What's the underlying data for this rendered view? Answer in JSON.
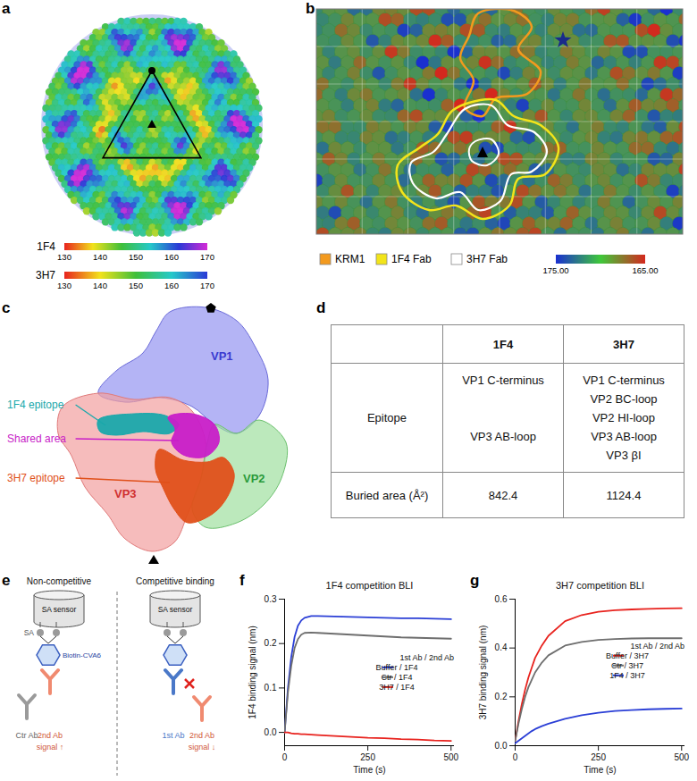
{
  "panel_a": {
    "letter": "a",
    "colorbars": [
      {
        "label": "1F4",
        "range": [
          130,
          170
        ],
        "ticks": [
          130,
          140,
          150,
          160,
          170
        ],
        "colors": [
          "#e8231e",
          "#f2e21c",
          "#3fbf3a",
          "#25c9c9",
          "#2a3ad6",
          "#d42ad6"
        ]
      },
      {
        "label": "3H7",
        "range": [
          130,
          170
        ],
        "ticks": [
          130,
          140,
          150,
          160,
          170
        ],
        "colors": [
          "#e8231e",
          "#f2e21c",
          "#3fbf3a",
          "#25c9c9",
          "#2a3ad6"
        ]
      }
    ]
  },
  "panel_b": {
    "letter": "b",
    "legend": [
      {
        "label": "KRM1",
        "color": "#f39a1e"
      },
      {
        "label": "1F4 Fab",
        "color": "#f2e41a"
      },
      {
        "label": "3H7 Fab",
        "color": "#ffffff"
      }
    ],
    "colorbar": {
      "range": [
        175,
        165
      ],
      "ticks": [
        {
          "value": 175,
          "label": "175.00"
        },
        {
          "value": 165,
          "label": "165.00"
        }
      ],
      "colors": [
        "#1a2fd0",
        "#3fc83a",
        "#d4281e"
      ]
    }
  },
  "panel_c": {
    "letter": "c",
    "proteins": [
      {
        "label": "VP1",
        "color": "#3a3ad0"
      },
      {
        "label": "VP3",
        "color": "#d03030"
      },
      {
        "label": "VP2",
        "color": "#2a9a3a"
      }
    ],
    "callouts": [
      {
        "label": "1F4 epitope",
        "color": "#1aa8ab"
      },
      {
        "label": "Shared area",
        "color": "#c81ec8"
      },
      {
        "label": "3H7 epitope",
        "color": "#e0501a"
      }
    ]
  },
  "panel_d": {
    "letter": "d",
    "table": {
      "columns": [
        "1F4",
        "3H7"
      ],
      "rows": [
        {
          "label": "Epitope",
          "cells": [
            [
              "VP1 C-terminus",
              null,
              null,
              "VP3 AB-loop",
              null
            ],
            [
              "VP1 C-terminus",
              "VP2 BC-loop",
              "VP2 HI-loop",
              "VP3 AB-loop",
              "VP3 βI"
            ]
          ]
        },
        {
          "label": "Buried area (Å²)",
          "cells": [
            842.4,
            1124.4
          ]
        }
      ]
    }
  },
  "panel_e": {
    "letter": "e",
    "left": {
      "title": "Non-competitive",
      "sensor": "SA sensor",
      "sa": "SA",
      "antigen": "Biotin-CVA6",
      "antibodies": [
        {
          "label": "Ctr Ab",
          "color": "#9a9a9a"
        },
        {
          "label": "2nd Ab",
          "color": "#f08a70",
          "note": "signal ↑"
        }
      ]
    },
    "right": {
      "title": "Competitive binding",
      "sensor": "SA sensor",
      "antibodies": [
        {
          "label": "1st Ab",
          "color": "#4a78c8"
        },
        {
          "label": "2nd Ab",
          "color": "#f08a70",
          "note": "signal ↓"
        }
      ]
    }
  },
  "chart_data": [
    {
      "letter": "f",
      "type": "line",
      "title": "1F4 competition BLI",
      "x_label": "Time (s)",
      "y_label": "1F4 binding signal (nm)",
      "x": [
        0,
        10,
        20,
        30,
        40,
        50,
        60,
        80,
        100,
        150,
        200,
        250,
        300,
        350,
        400,
        450,
        500
      ],
      "xlim": [
        0,
        510
      ],
      "xticks": [
        0,
        250,
        500
      ],
      "ylim": [
        -0.03,
        0.3
      ],
      "yticks": [
        {
          "value": 0,
          "label": "0.0"
        },
        {
          "value": 0.1,
          "label": "0.1"
        },
        {
          "value": 0.2,
          "label": "0.2"
        },
        {
          "value": 0.3,
          "label": "0.3"
        }
      ],
      "legend": "bottom-right",
      "legend_title": "1st Ab / 2nd Ab",
      "series": [
        {
          "name": "Buffer / 1F4",
          "color": "#2b3fd6",
          "values": [
            0,
            0.1,
            0.17,
            0.215,
            0.24,
            0.252,
            0.258,
            0.262,
            0.262,
            0.261,
            0.26,
            0.259,
            0.258,
            0.257,
            0.257,
            0.256,
            0.255
          ]
        },
        {
          "name": "Ctr / 1F4",
          "color": "#6e6e6e",
          "values": [
            0,
            0.09,
            0.15,
            0.19,
            0.21,
            0.22,
            0.224,
            0.225,
            0.224,
            0.222,
            0.22,
            0.218,
            0.216,
            0.214,
            0.213,
            0.212,
            0.211
          ]
        },
        {
          "name": "3H7 / 1F4",
          "color": "#e8231e",
          "values": [
            0,
            0,
            -0.002,
            -0.003,
            -0.003,
            -0.004,
            -0.004,
            -0.005,
            -0.006,
            -0.008,
            -0.01,
            -0.012,
            -0.013,
            -0.015,
            -0.016,
            -0.018,
            -0.019
          ]
        }
      ]
    },
    {
      "letter": "g",
      "type": "line",
      "title": "3H7 competition BLI",
      "x_label": "Time (s)",
      "y_label": "3H7 binding signal (nm)",
      "x": [
        0,
        10,
        20,
        30,
        40,
        50,
        60,
        80,
        100,
        150,
        200,
        250,
        300,
        350,
        400,
        450,
        500
      ],
      "xlim": [
        0,
        510
      ],
      "xticks": [
        0,
        250,
        500
      ],
      "ylim": [
        0,
        0.6
      ],
      "yticks": [
        {
          "value": 0,
          "label": "0.0"
        },
        {
          "value": 0.2,
          "label": "0.2"
        },
        {
          "value": 0.4,
          "label": "0.4"
        },
        {
          "value": 0.6,
          "label": "0.6"
        }
      ],
      "legend": "right",
      "legend_title": "1st Ab / 2nd Ab",
      "series": [
        {
          "name": "Buffer / 3H7",
          "color": "#e8231e",
          "values": [
            0.02,
            0.1,
            0.17,
            0.23,
            0.28,
            0.32,
            0.36,
            0.41,
            0.45,
            0.51,
            0.535,
            0.548,
            0.555,
            0.558,
            0.56,
            0.562,
            0.563
          ]
        },
        {
          "name": "Ctr / 3H7",
          "color": "#6e6e6e",
          "values": [
            0.02,
            0.09,
            0.15,
            0.2,
            0.24,
            0.27,
            0.3,
            0.34,
            0.37,
            0.41,
            0.425,
            0.433,
            0.437,
            0.439,
            0.44,
            0.44,
            0.44
          ]
        },
        {
          "name": "1F4 / 3H7",
          "color": "#2b3fd6",
          "values": [
            0.01,
            0.02,
            0.03,
            0.04,
            0.05,
            0.06,
            0.068,
            0.08,
            0.09,
            0.11,
            0.125,
            0.135,
            0.142,
            0.146,
            0.149,
            0.151,
            0.152
          ]
        }
      ]
    }
  ]
}
